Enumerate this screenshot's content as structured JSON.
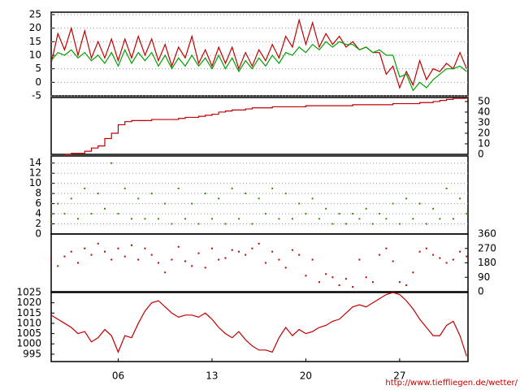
{
  "x": [
    1,
    1.5,
    2,
    2.5,
    3,
    3.5,
    4,
    4.5,
    5,
    5.5,
    6,
    6.5,
    7,
    7.5,
    8,
    8.5,
    9,
    9.5,
    10,
    10.5,
    11,
    11.5,
    12,
    12.5,
    13,
    13.5,
    14,
    14.5,
    15,
    15.5,
    16,
    16.5,
    17,
    17.5,
    18,
    18.5,
    19,
    19.5,
    20,
    20.5,
    21,
    21.5,
    22,
    22.5,
    23,
    23.5,
    24,
    24.5,
    25,
    25.5,
    26,
    26.5,
    27,
    27.5,
    28,
    28.5,
    29,
    29.5,
    30,
    30.5,
    31,
    31.5,
    32
  ],
  "xlim": [
    1,
    32.1
  ],
  "xticks": [
    {
      "value": 6,
      "label": "06"
    },
    13,
    20,
    27
  ],
  "footer": "http://www.tieffliegen.de/wetter/",
  "chart_data": [
    {
      "type": "line",
      "yaxis": "left",
      "grid": true,
      "ylim": [
        -5,
        25.9
      ],
      "yticks": [
        -5,
        0,
        5,
        10,
        15,
        20,
        25
      ],
      "series": [
        {
          "color": "#c00000",
          "values": [
            7,
            18,
            12,
            20,
            10,
            19,
            9,
            15,
            9,
            16,
            8,
            16,
            9,
            17,
            10,
            16,
            8,
            14,
            6,
            13,
            9,
            17,
            7,
            12,
            6,
            13,
            7,
            13,
            5,
            11,
            6,
            12,
            8,
            14,
            9,
            17,
            13,
            23,
            14,
            22,
            13,
            18,
            14,
            17,
            13,
            15,
            12,
            13,
            11,
            11,
            3,
            6,
            -2,
            4,
            -1,
            8,
            1,
            5,
            4,
            7,
            5,
            11,
            5
          ]
        },
        {
          "color": "#00a000",
          "values": [
            8,
            11,
            10,
            12,
            9,
            11,
            8,
            10,
            7,
            11,
            6,
            12,
            7,
            11,
            8,
            11,
            6,
            10,
            5,
            9,
            6,
            10,
            6,
            9,
            5,
            10,
            5,
            9,
            4,
            8,
            5,
            9,
            6,
            10,
            7,
            11,
            10,
            13,
            11,
            14,
            12,
            15,
            13,
            15,
            14,
            14,
            12,
            13,
            11,
            12,
            10,
            10,
            2,
            3,
            -3,
            0,
            -2,
            1,
            3,
            5,
            5,
            6,
            4
          ]
        }
      ]
    },
    {
      "type": "line",
      "step": true,
      "yaxis": "right",
      "grid": false,
      "ylim": [
        0,
        53.8
      ],
      "yticks": [
        0,
        10,
        20,
        30,
        40,
        50
      ],
      "series": [
        {
          "color": "#c00000",
          "values": [
            null,
            null,
            0,
            1,
            1,
            3,
            6,
            8,
            15,
            20,
            28,
            31,
            32,
            32,
            32,
            33,
            33,
            33,
            33,
            34,
            35,
            35,
            36,
            37,
            38,
            40,
            41,
            42,
            42,
            43,
            44,
            44,
            44,
            45,
            45,
            45,
            45,
            45,
            46,
            46,
            46,
            46,
            46,
            46,
            46,
            47,
            47,
            47,
            47,
            47,
            47,
            48,
            48,
            48,
            48,
            49,
            49,
            50,
            51,
            52,
            53,
            53,
            53
          ]
        }
      ]
    },
    {
      "type": "scatter",
      "yaxis": "left",
      "grid": true,
      "ylim": [
        0,
        15.4
      ],
      "yticks": [
        0,
        2,
        4,
        6,
        8,
        10,
        12,
        14
      ],
      "series": [
        {
          "color": "#3c8c00",
          "values": [
            3,
            6,
            4,
            7,
            3,
            9,
            4,
            8,
            5,
            14,
            4,
            9,
            3,
            7,
            3,
            8,
            3,
            6,
            2,
            9,
            3,
            6,
            2,
            8,
            3,
            7,
            2,
            9,
            3,
            8,
            2,
            7,
            4,
            9,
            3,
            8,
            3,
            6,
            4,
            7,
            3,
            5,
            2,
            4,
            2,
            4,
            3,
            5,
            2,
            4,
            3,
            6,
            2,
            7,
            3,
            6,
            2,
            5,
            3,
            9,
            3,
            7,
            4
          ]
        }
      ]
    },
    {
      "type": "scatter",
      "yaxis": "right",
      "grid": false,
      "ylim": [
        0,
        360
      ],
      "yticks": [
        0,
        90,
        180,
        270,
        360
      ],
      "series": [
        {
          "color": "#c00000",
          "values": [
            200,
            160,
            220,
            250,
            180,
            270,
            230,
            300,
            250,
            200,
            270,
            220,
            290,
            200,
            270,
            230,
            180,
            120,
            200,
            280,
            190,
            160,
            240,
            150,
            270,
            200,
            210,
            260,
            250,
            230,
            270,
            300,
            180,
            250,
            200,
            150,
            260,
            230,
            100,
            200,
            60,
            110,
            90,
            40,
            80,
            30,
            200,
            90,
            60,
            230,
            270,
            190,
            60,
            40,
            120,
            250,
            270,
            230,
            210,
            180,
            200,
            250,
            220
          ]
        }
      ]
    },
    {
      "type": "line",
      "yaxis": "left",
      "grid": false,
      "ylim": [
        991.4,
        1025
      ],
      "yticks": [
        995,
        1000,
        1005,
        1010,
        1015,
        1020,
        1025
      ],
      "series": [
        {
          "color": "#c00000",
          "values": [
            1014,
            1012,
            1010,
            1008,
            1005,
            1006,
            1001,
            1003,
            1007,
            1004,
            996,
            1004,
            1003,
            1010,
            1016,
            1020,
            1021,
            1018,
            1015,
            1013,
            1014,
            1014,
            1013,
            1015,
            1012,
            1008,
            1005,
            1003,
            1006,
            1002,
            999,
            997,
            997,
            996,
            1003,
            1008,
            1004,
            1007,
            1005,
            1006,
            1008,
            1009,
            1011,
            1012,
            1015,
            1018,
            1019,
            1018,
            1020,
            1022,
            1024,
            1025,
            1024,
            1021,
            1017,
            1012,
            1008,
            1004,
            1004,
            1009,
            1011,
            1004,
            994
          ]
        }
      ]
    }
  ]
}
